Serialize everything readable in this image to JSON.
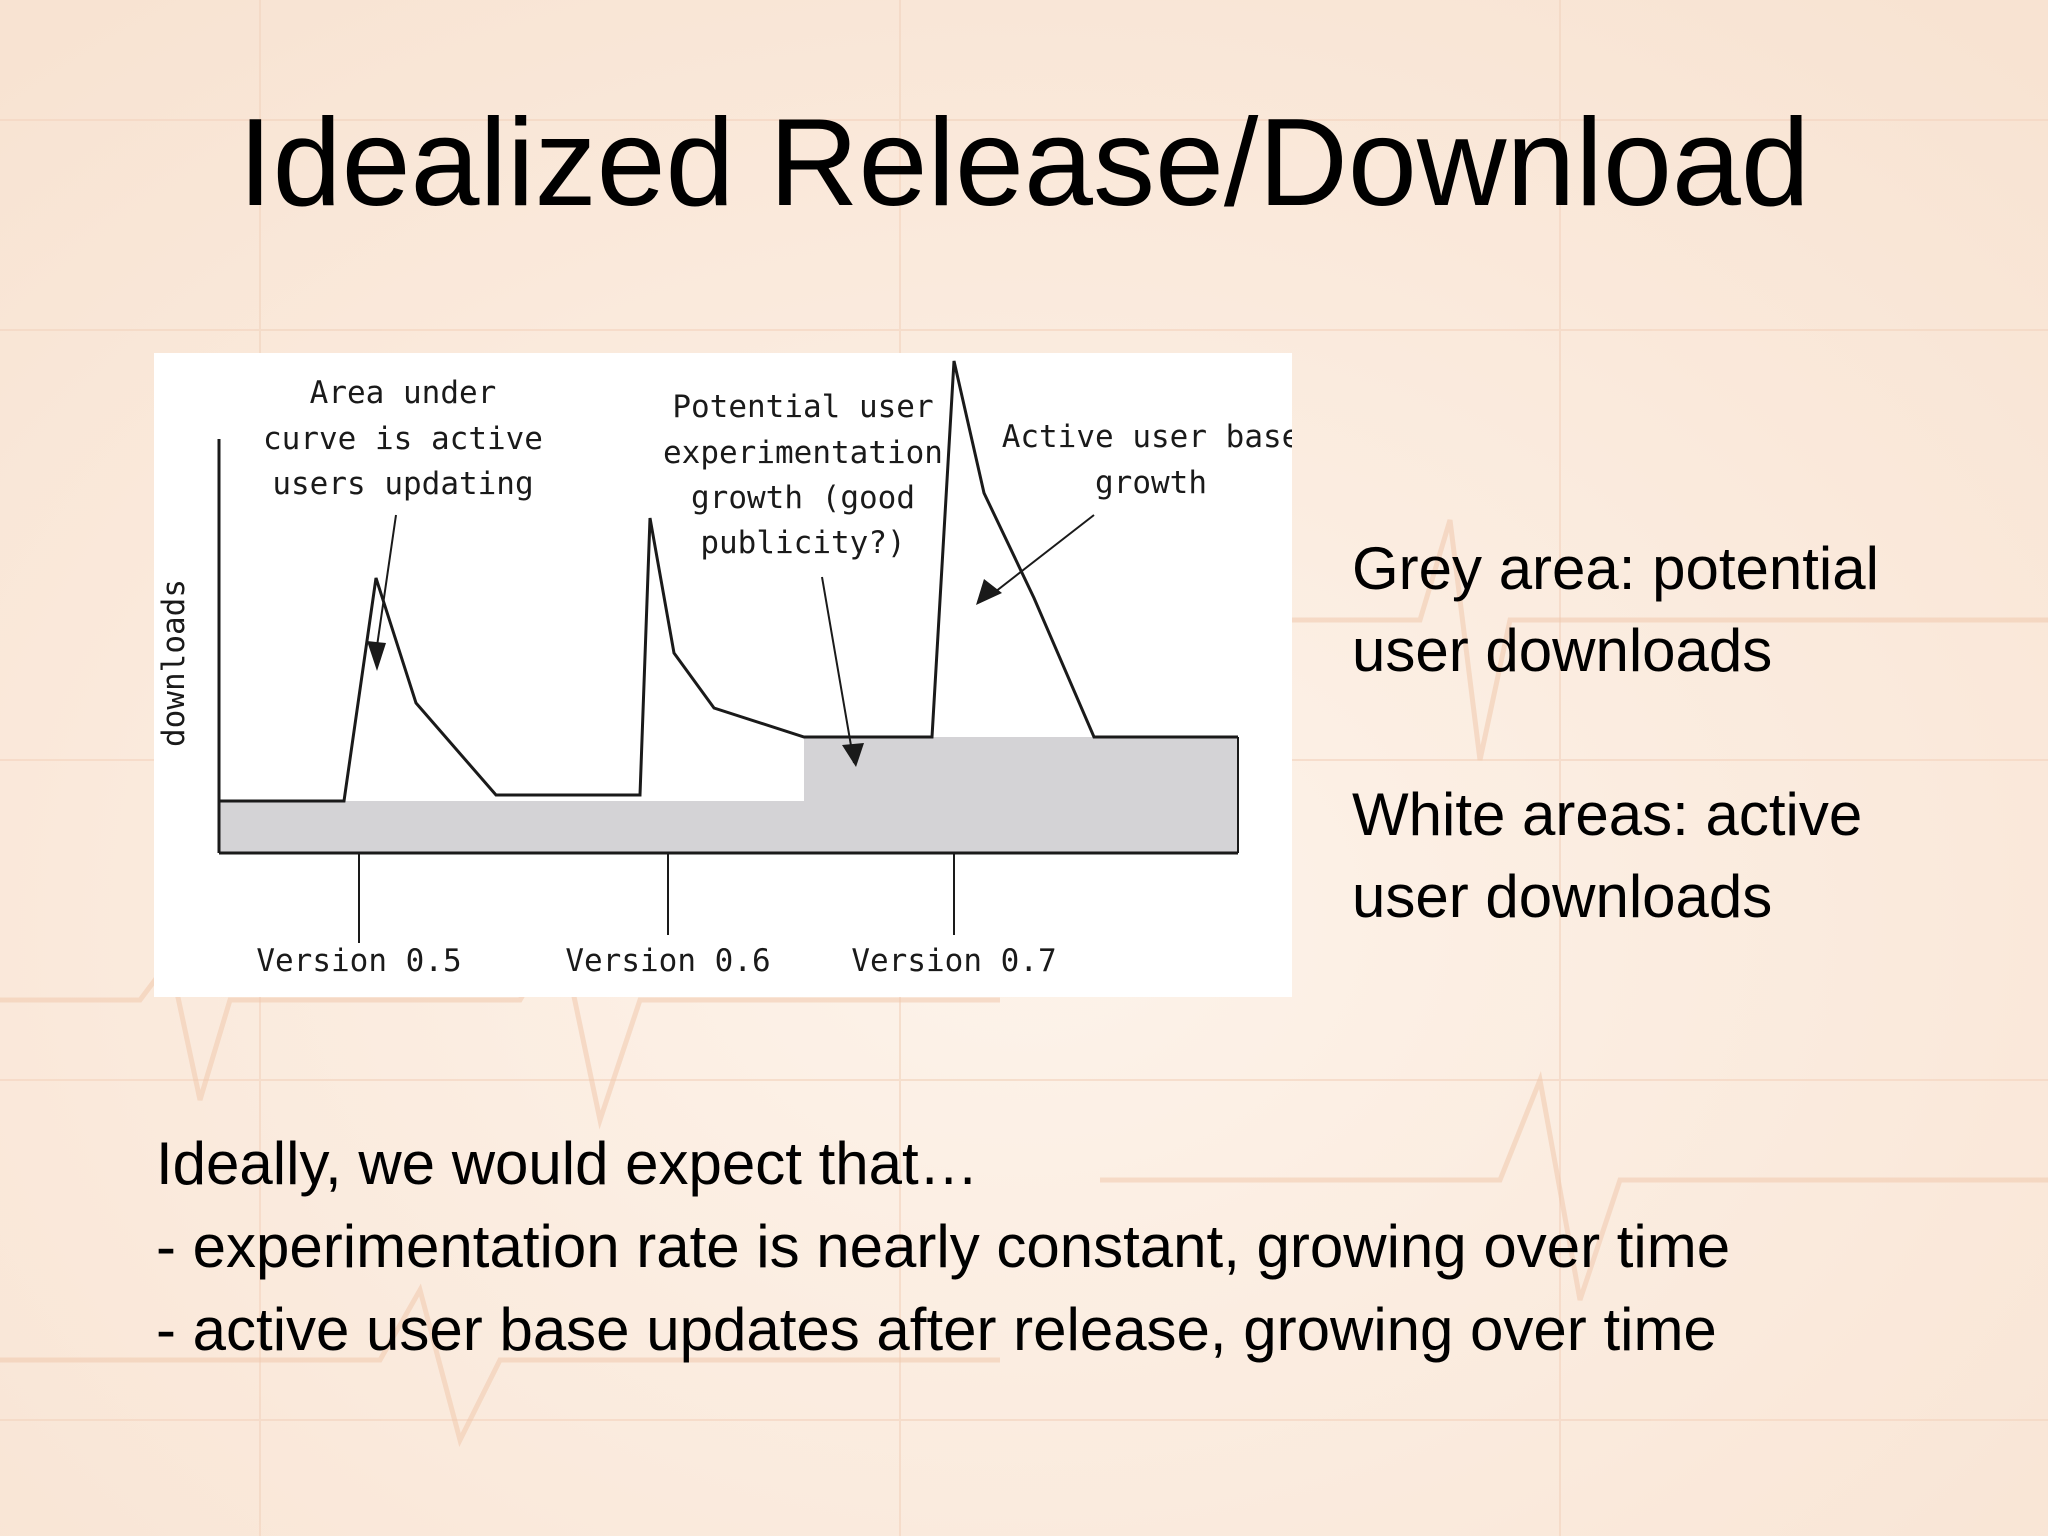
{
  "slide": {
    "title": "Idealized Release/Download"
  },
  "figure": {
    "y_axis_label": "downloads",
    "annotations": {
      "area_under_curve": [
        "Area under",
        "curve is active",
        "users updating"
      ],
      "potential_user": [
        "Potential user",
        "experimentation",
        "growth (good",
        "publicity?)"
      ],
      "active_user_base": [
        "Active user base",
        "growth"
      ]
    },
    "versions": [
      "Version 0.5",
      "Version 0.6",
      "Version 0.7"
    ],
    "colors": {
      "grey_area": "#d4d3d6",
      "line": "#1a1a1a",
      "background": "#ffffff"
    }
  },
  "notes": {
    "grey_area": [
      "Grey area: potential",
      "user downloads"
    ],
    "white_areas": [
      "White areas: active",
      "user downloads"
    ]
  },
  "bottom": {
    "lines": [
      "Ideally, we would expect that…",
      "- experimentation rate is nearly constant, growing over time",
      "- active user base updates after release, growing over time"
    ]
  }
}
